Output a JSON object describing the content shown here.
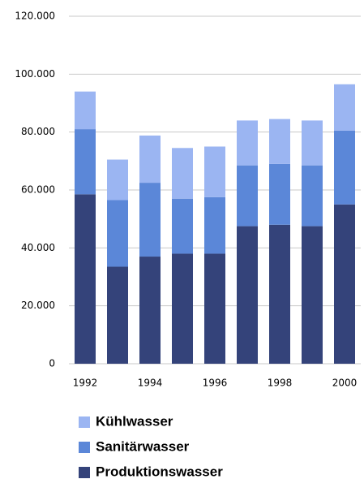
{
  "chart_data": {
    "type": "stacked_bar",
    "categories": [
      "1992",
      null,
      "1994",
      null,
      "1996",
      null,
      "1998",
      null,
      "2000"
    ],
    "series": [
      {
        "name": "Produktionswasser",
        "color": "#34437a",
        "values": [
          58500,
          33500,
          37000,
          38000,
          38000,
          47500,
          48000,
          47500,
          55000
        ]
      },
      {
        "name": "Sanitärwasser",
        "color": "#5b87d8",
        "values": [
          22500,
          23000,
          25500,
          19000,
          19500,
          21000,
          21000,
          21000,
          25500
        ]
      },
      {
        "name": "Kühlwasser",
        "color": "#9bb5f2",
        "values": [
          13000,
          14000,
          16300,
          17500,
          17500,
          15500,
          15500,
          15500,
          16000
        ]
      }
    ],
    "ylim": [
      0,
      120000
    ],
    "yticks": [
      0,
      {
        "value": 20000,
        "label": "20.000"
      },
      {
        "value": 40000,
        "label": "40.000"
      },
      {
        "value": 60000,
        "label": "60.000"
      },
      {
        "value": 80000,
        "label": "80.000"
      },
      {
        "value": 100000,
        "label": "100.000"
      },
      {
        "value": 120000,
        "label": "120.000"
      }
    ],
    "grid": true
  }
}
